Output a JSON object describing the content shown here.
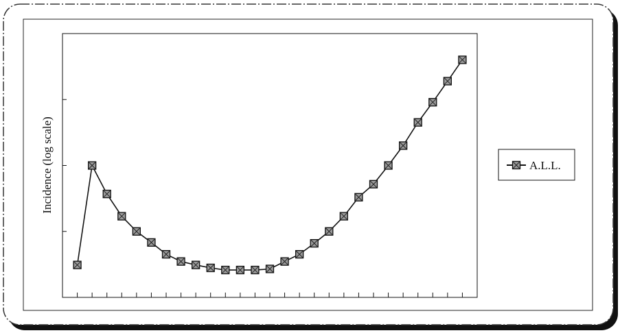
{
  "chart_data": {
    "type": "line",
    "title": "",
    "xlabel": "",
    "ylabel": "Incidence (log scale)",
    "y_scale": "log",
    "grid": false,
    "legend_position": "right",
    "x": [
      1,
      2,
      3,
      4,
      5,
      6,
      7,
      8,
      9,
      10,
      11,
      12,
      13,
      14,
      15,
      16,
      17,
      18,
      19,
      20,
      21,
      22,
      23,
      24,
      25,
      26,
      27
    ],
    "series": [
      {
        "name": "A.L.L.",
        "marker": "square-hatched",
        "color": "#111111",
        "values": [
          0.00031,
          0.01,
          0.0037,
          0.0017,
          0.001,
          0.00068,
          0.00045,
          0.00035,
          0.00031,
          0.00028,
          0.00026,
          0.00026,
          0.00026,
          0.00027,
          0.00035,
          0.00045,
          0.00066,
          0.001,
          0.0017,
          0.0033,
          0.0052,
          0.01,
          0.02,
          0.045,
          0.091,
          0.19,
          0.4
        ]
      }
    ],
    "ylim": [
      0.0001,
      1
    ]
  }
}
